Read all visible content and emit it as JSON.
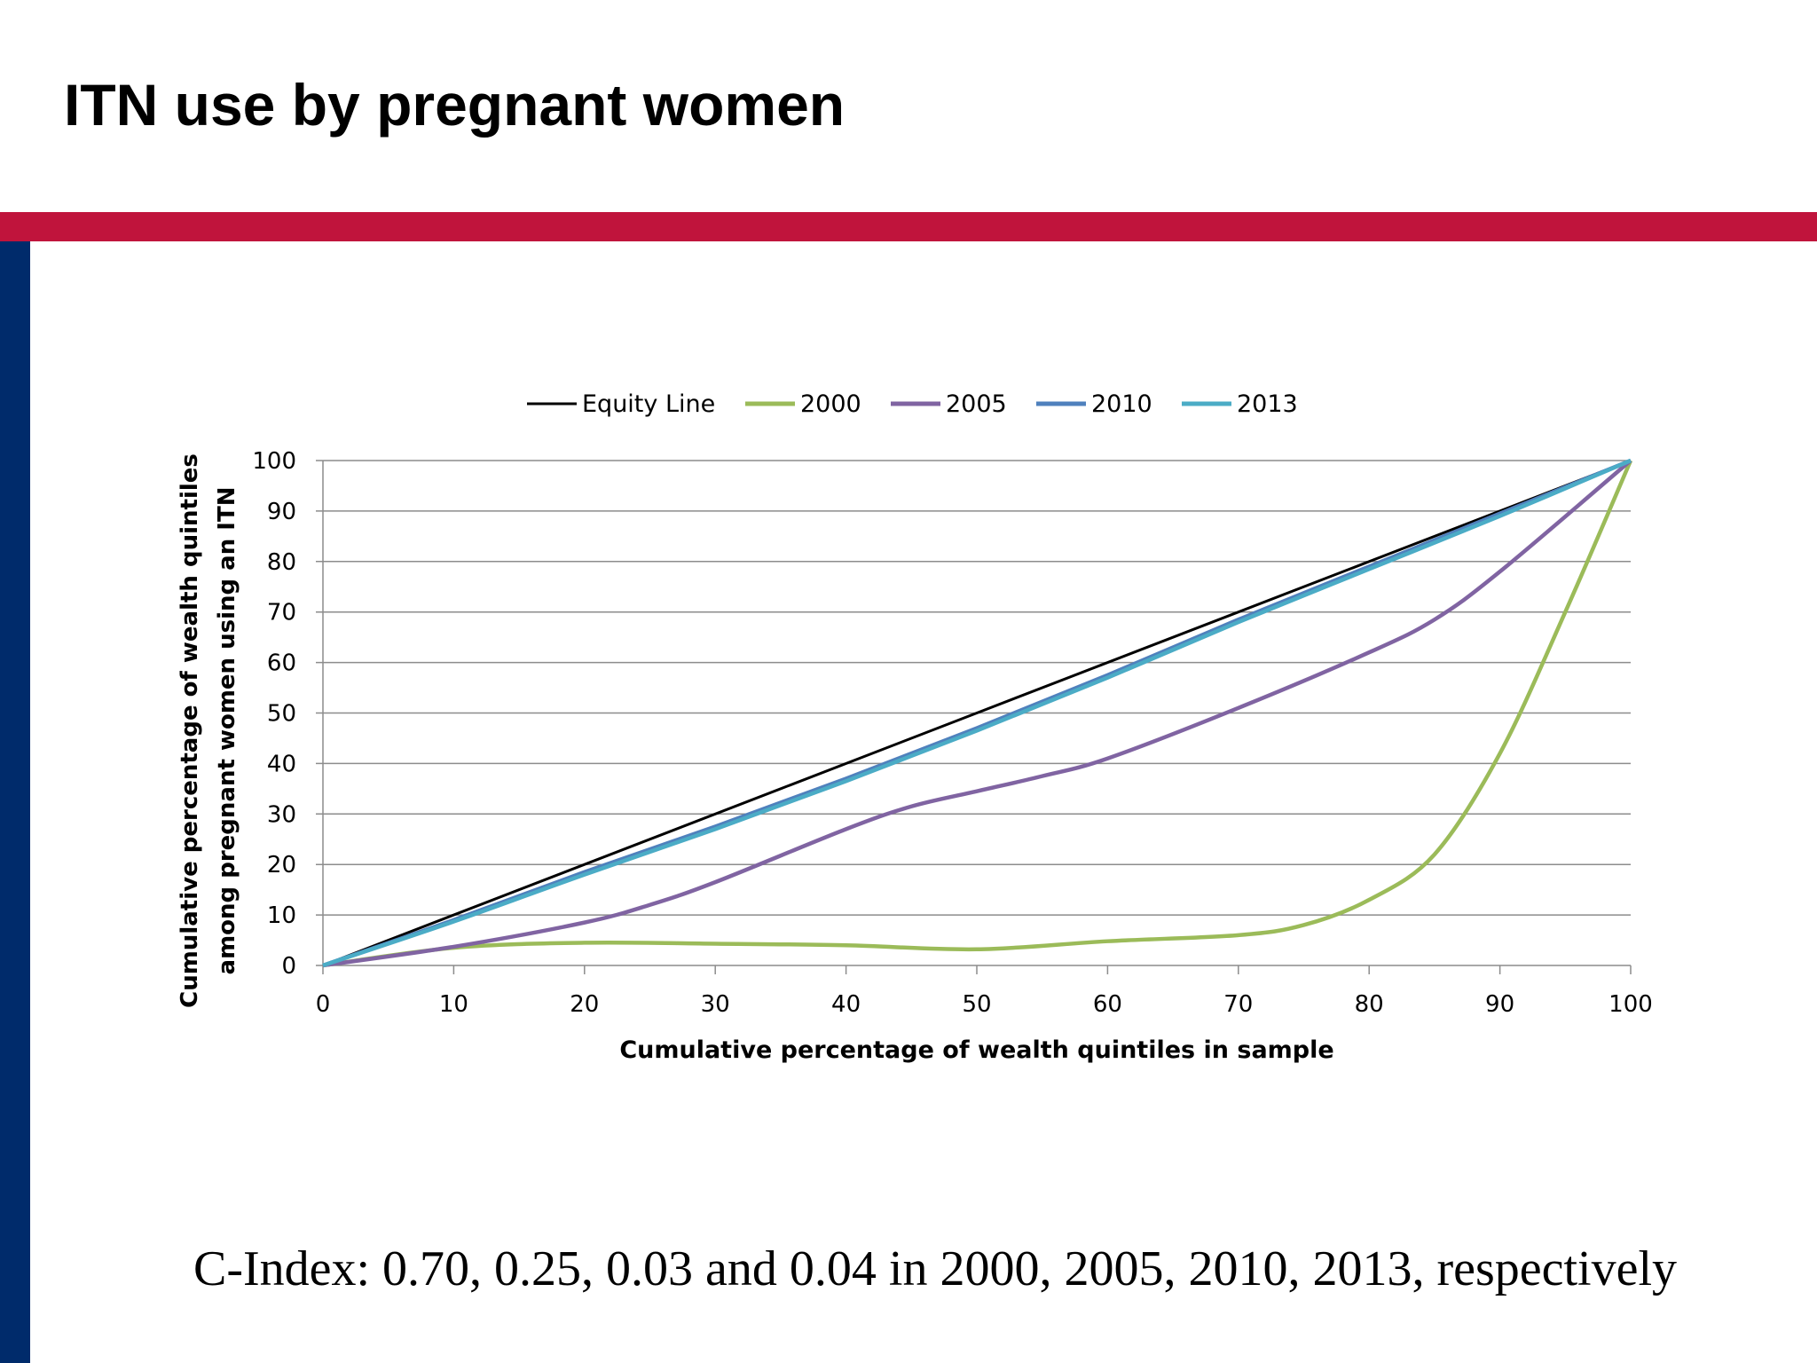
{
  "title": "ITN use by pregnant women",
  "footer": "C-Index: 0.70, 0.25, 0.03 and 0.04 in 2000, 2005, 2010, 2013, respectively",
  "colors": {
    "accent_bar": "#C0143C",
    "side_bar": "#002B6B"
  },
  "chart_data": {
    "type": "line",
    "title": "",
    "xlabel": "Cumulative percentage of wealth quintiles in sample",
    "ylabel": [
      "Cumulative percentage of wealth quintiles",
      "among pregnant women using an ITN"
    ],
    "xlim": [
      0,
      100
    ],
    "ylim": [
      0,
      100
    ],
    "xticks": [
      0,
      10,
      20,
      30,
      40,
      50,
      60,
      70,
      80,
      90,
      100
    ],
    "yticks": [
      0,
      10,
      20,
      30,
      40,
      50,
      60,
      70,
      80,
      90,
      100
    ],
    "grid": "horizontal",
    "legend": "top",
    "series": [
      {
        "name": "Equity Line",
        "color": "#000000",
        "points": [
          [
            0,
            0
          ],
          [
            100,
            100
          ]
        ]
      },
      {
        "name": "2000",
        "color": "#9BBB59",
        "points": [
          [
            0,
            0
          ],
          [
            10,
            3.5
          ],
          [
            20,
            4.5
          ],
          [
            30,
            4.3
          ],
          [
            40,
            4
          ],
          [
            50,
            3.2
          ],
          [
            60,
            4.8
          ],
          [
            70,
            6
          ],
          [
            75,
            8
          ],
          [
            80,
            13
          ],
          [
            85,
            22
          ],
          [
            90,
            42
          ],
          [
            95,
            70
          ],
          [
            100,
            100
          ]
        ]
      },
      {
        "name": "2005",
        "color": "#8064A2",
        "points": [
          [
            0,
            0
          ],
          [
            10,
            3.7
          ],
          [
            20,
            8.5
          ],
          [
            25,
            12
          ],
          [
            30,
            16.5
          ],
          [
            40,
            27
          ],
          [
            45,
            31.5
          ],
          [
            50,
            34.5
          ],
          [
            55,
            37.5
          ],
          [
            60,
            41
          ],
          [
            70,
            51
          ],
          [
            80,
            62
          ],
          [
            85,
            68.5
          ],
          [
            90,
            78
          ],
          [
            100,
            100
          ]
        ]
      },
      {
        "name": "2010",
        "color": "#4F81BD",
        "points": [
          [
            0,
            0
          ],
          [
            10,
            9
          ],
          [
            20,
            18.5
          ],
          [
            30,
            27.5
          ],
          [
            40,
            37
          ],
          [
            50,
            47
          ],
          [
            60,
            57.5
          ],
          [
            70,
            68.5
          ],
          [
            80,
            79
          ],
          [
            90,
            89.5
          ],
          [
            100,
            100
          ]
        ]
      },
      {
        "name": "2013",
        "color": "#4BACC6",
        "points": [
          [
            0,
            0
          ],
          [
            10,
            8.7
          ],
          [
            20,
            18
          ],
          [
            30,
            27
          ],
          [
            40,
            36.5
          ],
          [
            50,
            46.5
          ],
          [
            60,
            57
          ],
          [
            70,
            68
          ],
          [
            80,
            78.5
          ],
          [
            90,
            89
          ],
          [
            100,
            100
          ]
        ]
      }
    ]
  }
}
